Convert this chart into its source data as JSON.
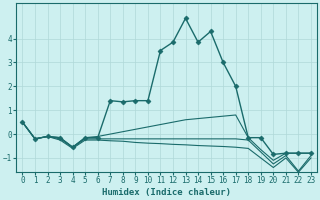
{
  "xlabel": "Humidex (Indice chaleur)",
  "ylabel": "",
  "background_color": "#cdf0f0",
  "grid_color": "#b0d8d8",
  "line_color": "#1a6b6b",
  "xlim": [
    -0.5,
    23.5
  ],
  "ylim": [
    -1.6,
    5.5
  ],
  "yticks": [
    -1,
    0,
    1,
    2,
    3,
    4
  ],
  "xticks": [
    0,
    1,
    2,
    3,
    4,
    5,
    6,
    7,
    8,
    9,
    10,
    11,
    12,
    13,
    14,
    15,
    16,
    17,
    18,
    19,
    20,
    21,
    22,
    23
  ],
  "series": [
    {
      "x": [
        0,
        1,
        2,
        3,
        4,
        5,
        6,
        7,
        8,
        9,
        10,
        11,
        12,
        13,
        14,
        15,
        16,
        17,
        18,
        19,
        20,
        21,
        22,
        23
      ],
      "y": [
        0.5,
        -0.2,
        -0.1,
        -0.15,
        -0.55,
        -0.15,
        -0.15,
        1.4,
        1.35,
        1.4,
        1.4,
        3.5,
        3.85,
        4.85,
        3.85,
        4.3,
        3.0,
        2.0,
        -0.15,
        -0.15,
        -0.85,
        -0.8,
        -0.8,
        -0.8
      ],
      "marker": "D",
      "markersize": 2.5,
      "linewidth": 1.0
    },
    {
      "x": [
        0,
        1,
        2,
        3,
        4,
        5,
        6,
        7,
        8,
        9,
        10,
        11,
        12,
        13,
        14,
        15,
        16,
        17,
        18,
        19,
        20,
        21,
        22,
        23
      ],
      "y": [
        0.5,
        -0.2,
        -0.1,
        -0.15,
        -0.55,
        -0.15,
        -0.1,
        -0.0,
        0.1,
        0.2,
        0.3,
        0.4,
        0.5,
        0.6,
        0.65,
        0.7,
        0.75,
        0.8,
        -0.15,
        -0.65,
        -1.1,
        -0.8,
        -0.8,
        -0.8
      ],
      "marker": null,
      "linewidth": 0.8
    },
    {
      "x": [
        0,
        1,
        2,
        3,
        4,
        5,
        6,
        7,
        8,
        9,
        10,
        11,
        12,
        13,
        14,
        15,
        16,
        17,
        18,
        19,
        20,
        21,
        22,
        23
      ],
      "y": [
        0.5,
        -0.2,
        -0.1,
        -0.2,
        -0.55,
        -0.2,
        -0.2,
        -0.2,
        -0.2,
        -0.2,
        -0.2,
        -0.2,
        -0.2,
        -0.2,
        -0.2,
        -0.2,
        -0.2,
        -0.2,
        -0.25,
        -0.75,
        -1.25,
        -0.9,
        -1.55,
        -0.9
      ],
      "marker": null,
      "linewidth": 0.8
    },
    {
      "x": [
        0,
        1,
        2,
        3,
        4,
        5,
        6,
        7,
        8,
        9,
        10,
        11,
        12,
        13,
        14,
        15,
        16,
        17,
        18,
        19,
        20,
        21,
        22,
        23
      ],
      "y": [
        0.5,
        -0.2,
        -0.1,
        -0.25,
        -0.6,
        -0.25,
        -0.25,
        -0.28,
        -0.3,
        -0.35,
        -0.38,
        -0.4,
        -0.43,
        -0.45,
        -0.48,
        -0.5,
        -0.52,
        -0.55,
        -0.6,
        -1.0,
        -1.4,
        -1.0,
        -1.6,
        -1.0
      ],
      "marker": null,
      "linewidth": 0.8
    }
  ]
}
